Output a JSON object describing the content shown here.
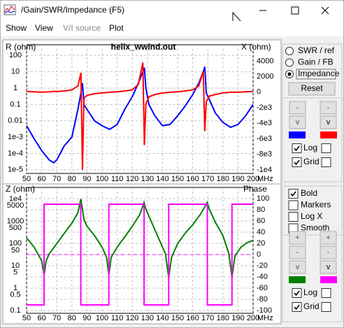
{
  "window": {
    "title": "/Gain/SWR/Impedance (F5)"
  },
  "menu": [
    "Show",
    "View",
    "V/I source",
    "Plot"
  ],
  "chart_data": [
    {
      "type": "line",
      "title": "helix_wwind.out",
      "y_label": "R (ohm)",
      "y2_label": "X (ohm)",
      "x_unit": "MHz",
      "x": [
        50,
        55,
        60,
        65,
        68,
        70,
        75,
        80,
        84,
        86,
        87,
        88,
        90,
        95,
        100,
        105,
        110,
        115,
        120,
        124,
        127,
        128,
        129,
        131,
        135,
        140,
        145,
        150,
        155,
        160,
        164,
        167,
        168,
        169,
        171,
        175,
        180,
        185,
        190,
        195,
        200
      ],
      "xlim": [
        50,
        200
      ],
      "xticks": [
        50,
        60,
        70,
        80,
        90,
        100,
        110,
        120,
        130,
        140,
        150,
        160,
        170,
        180,
        190,
        200
      ],
      "ylim": [
        6e-06,
        450
      ],
      "y_log": true,
      "yticks": [
        100,
        10,
        1,
        0.1,
        0.01,
        {
          "value": 0.001,
          "label": "1e-3"
        },
        {
          "value": 0.0001,
          "label": "1e-4"
        },
        {
          "value": 1e-05,
          "label": "1e-5"
        }
      ],
      "y2lim": [
        -10450,
        6100
      ],
      "y2ticks": [
        4000,
        2000,
        0,
        {
          "value": -2000,
          "label": "-2e3"
        },
        {
          "value": -4000,
          "label": "-4e3"
        },
        {
          "value": -6000,
          "label": "-6e3"
        },
        {
          "value": -8000,
          "label": "-8e3"
        },
        {
          "value": -10000,
          "label": "-1e4"
        }
      ],
      "grid": "y",
      "series": [
        {
          "color": "#0000ff",
          "values": [
            0.005,
            0.0008,
            0.00015,
            4e-05,
            2.7e-05,
            4e-05,
            0.0003,
            0.001,
            0.05,
            0.5,
            2,
            0.1,
            0.05,
            0.01,
            0.005,
            0.003,
            0.006,
            0.05,
            0.3,
            2,
            10,
            18,
            1,
            0.1,
            0.02,
            0.005,
            0.006,
            0.02,
            0.08,
            0.4,
            2,
            10,
            20,
            0.5,
            0.2,
            0.03,
            0.008,
            0.004,
            0.006,
            0.02,
            0.1
          ]
        },
        {
          "color": "#ff0000",
          "axis": "y2",
          "values": [
            100,
            50,
            0,
            50,
            100,
            100,
            150,
            300,
            800,
            2500,
            -10000,
            -800,
            -400,
            -200,
            -100,
            0,
            50,
            150,
            300,
            1000,
            3800,
            -6800,
            -1500,
            -600,
            -300,
            -100,
            0,
            50,
            150,
            300,
            800,
            2700,
            -5000,
            -1200,
            -500,
            -300,
            -100,
            0,
            0,
            50,
            100
          ]
        }
      ]
    },
    {
      "type": "line",
      "y_label": "Z (ohm)",
      "y2_label": "Phase",
      "x_unit": "MHz",
      "x": [
        50,
        55,
        60,
        61.6,
        63,
        65,
        70,
        75,
        80,
        84,
        85.9,
        87,
        88,
        90,
        95,
        100,
        103,
        104.5,
        106,
        110,
        115,
        120,
        125,
        127.8,
        129,
        132,
        137,
        142,
        144.1,
        146,
        150,
        155,
        160,
        165,
        169.7,
        171,
        175,
        180,
        184,
        186,
        188,
        192,
        196,
        200
      ],
      "xlim": [
        50,
        200
      ],
      "xticks": [
        50,
        60,
        70,
        80,
        90,
        100,
        110,
        120,
        130,
        140,
        150,
        160,
        170,
        180,
        190,
        200
      ],
      "ylim": [
        0.075,
        33000
      ],
      "y_log": true,
      "yticks": [
        {
          "value": 10000,
          "label": "1e4"
        },
        5000,
        1000,
        500,
        100,
        50,
        10,
        5,
        1,
        0.5,
        0.1
      ],
      "y2lim": [
        -105,
        120
      ],
      "y2ticks": [
        100,
        80,
        60,
        40,
        20,
        0,
        -20,
        -40,
        -60,
        -80,
        -100
      ],
      "y2_refline": 0,
      "grid": "y2",
      "series": [
        {
          "color": "#008000",
          "values": [
            180,
            70,
            17,
            4,
            17,
            35,
            100,
            290,
            830,
            2400,
            10000,
            3500,
            1200,
            600,
            230,
            70,
            24,
            4,
            24,
            70,
            200,
            600,
            2000,
            7000,
            3500,
            1200,
            200,
            35,
            3,
            24,
            100,
            290,
            700,
            2000,
            7000,
            3500,
            900,
            230,
            35,
            3,
            28,
            70,
            110,
            140
          ]
        },
        {
          "color": "#ff00ff",
          "axis": "y2",
          "x": [
            50,
            61.6,
            61.6,
            85.9,
            85.9,
            104.5,
            104.5,
            127.8,
            127.8,
            144.1,
            144.1,
            169.7,
            169.7,
            186,
            186,
            200
          ],
          "values": [
            -90,
            -90,
            90,
            90,
            -90,
            -90,
            90,
            90,
            -90,
            -90,
            90,
            90,
            -90,
            -90,
            90,
            90
          ]
        }
      ]
    }
  ],
  "side_panel": {
    "modes": {
      "options": [
        "SWR / ref",
        "Gain / FB",
        "Impedance"
      ],
      "selected": 2
    },
    "reset_label": "Reset",
    "top_axis_controls": {
      "buttons": [
        [
          "-",
          "-"
        ],
        [
          "v",
          "v"
        ]
      ],
      "checks": [
        {
          "label": "Log",
          "checked": true,
          "extra_checked": false
        },
        {
          "label": "Grid",
          "checked": true,
          "extra_checked": false
        }
      ]
    },
    "options": [
      {
        "label": "Bold",
        "checked": true
      },
      {
        "label": "Markers",
        "checked": false
      },
      {
        "label": "Log X",
        "checked": false
      },
      {
        "label": "Smooth",
        "checked": false
      }
    ],
    "bottom_axis_controls": {
      "buttons": [
        [
          "+",
          "+"
        ],
        [
          "-",
          "-"
        ],
        [
          "v",
          "v"
        ]
      ],
      "checks": [
        {
          "label": "Log",
          "checked": true,
          "extra_checked": false
        },
        {
          "label": "Grid",
          "checked": true,
          "extra_checked": false
        }
      ]
    }
  }
}
